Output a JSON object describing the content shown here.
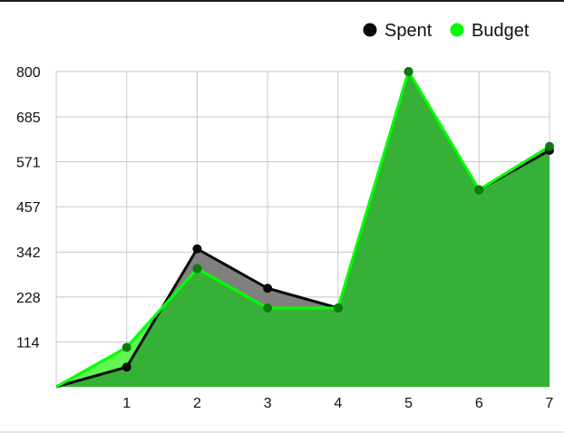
{
  "chart_data": {
    "type": "area",
    "x": [
      0,
      1,
      2,
      3,
      4,
      5,
      6,
      7
    ],
    "xticks": [
      "1",
      "2",
      "3",
      "4",
      "5",
      "6",
      "7"
    ],
    "yticks": [
      "114",
      "228",
      "342",
      "457",
      "571",
      "685",
      "800"
    ],
    "ylim": [
      0,
      800
    ],
    "xlim": [
      0,
      7
    ],
    "grid": true,
    "legend_position": "top-right",
    "series": [
      {
        "name": "Spent",
        "values": [
          0,
          50,
          350,
          250,
          200,
          800,
          500,
          600
        ],
        "color": "#0a0a0a",
        "fill": "#808080"
      },
      {
        "name": "Budget",
        "values": [
          0,
          100,
          300,
          200,
          200,
          800,
          500,
          610
        ],
        "color": "#00ff00",
        "fill": "#2fb52f"
      }
    ]
  }
}
